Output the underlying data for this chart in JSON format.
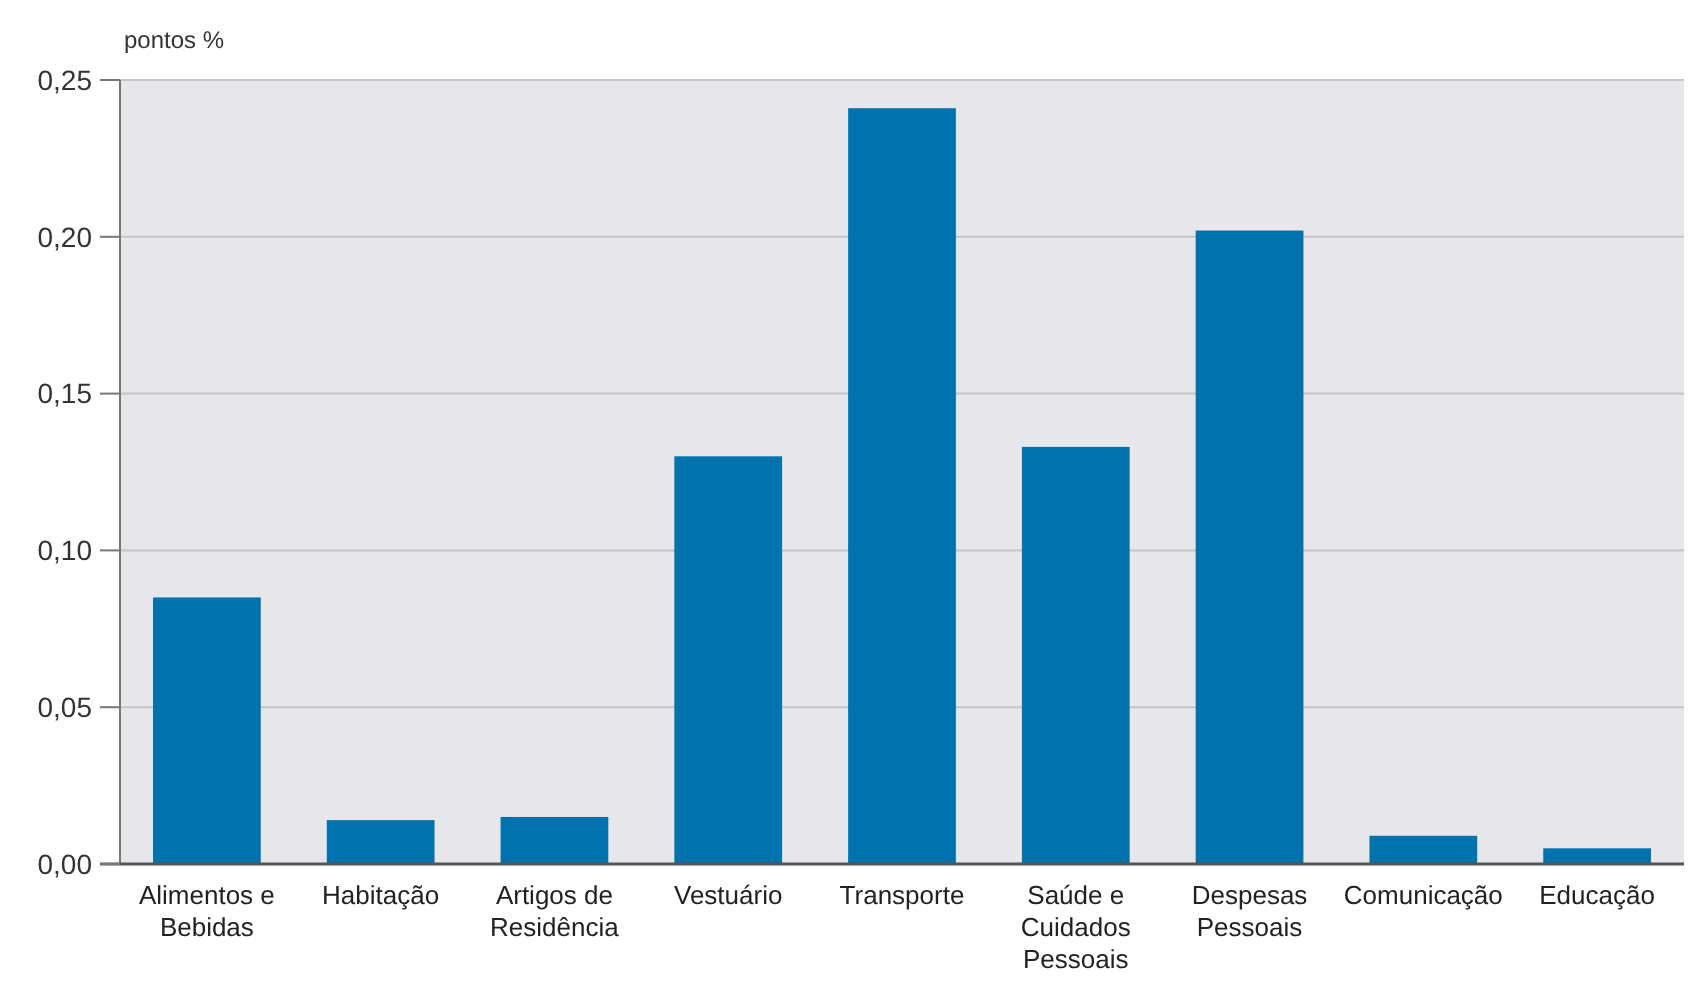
{
  "chart_data": {
    "type": "bar",
    "ylabel": "pontos %",
    "categories": [
      "Alimentos e Bebidas",
      "Habitação",
      "Artigos de Residência",
      "Vestuário",
      "Transporte",
      "Saúde e Cuidados Pessoais",
      "Despesas Pessoais",
      "Comunicação",
      "Educação"
    ],
    "values": [
      0.085,
      0.014,
      0.015,
      0.13,
      0.241,
      0.133,
      0.202,
      0.009,
      0.005
    ],
    "color": "#0073ae",
    "ylim": [
      0,
      0.25
    ],
    "yticks": [
      {
        "value": 0,
        "label": "0,00"
      },
      {
        "value": 0.05,
        "label": "0,05"
      },
      {
        "value": 0.1,
        "label": "0,10"
      },
      {
        "value": 0.15,
        "label": "0,15"
      },
      {
        "value": 0.2,
        "label": "0,20"
      },
      {
        "value": 0.25,
        "label": "0,25"
      }
    ],
    "grid": "y"
  }
}
